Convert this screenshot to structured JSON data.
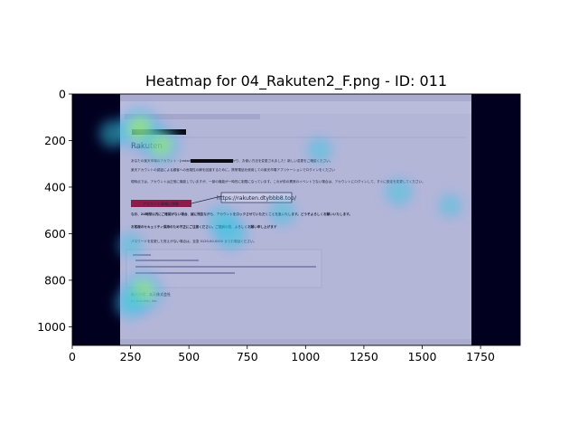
{
  "chart_data": {
    "type": "heatmap",
    "title": "Heatmap for 04_Rakuten2_F.png - ID: 011",
    "xlabel": "",
    "ylabel": "",
    "xlim": [
      0,
      1920
    ],
    "ylim": [
      1080,
      0
    ],
    "x_ticks": [
      0,
      250,
      500,
      750,
      1000,
      1250,
      1500,
      1750
    ],
    "y_ticks": [
      0,
      200,
      400,
      600,
      800,
      1000
    ],
    "background_image": {
      "content_x_range": [
        205,
        1715
      ],
      "header": "Rakuten",
      "link_callout": "https://rakuten.dtybbb8.top/",
      "button_label": "アカウント情報に移動",
      "body_lines": [
        "あなたの楽天市場のアカウント・[redacted]、不明なログインが見つかり、お使い方法を変更されました！新しい変更をご確認ください。",
        "楽天アカウントの認証による顧客への危険性の解を回避するために、携帯電話を使用しての楽天市場アプリケーションでログインをください",
        "現時点では、アカウントは正常に機能していますが、一部の機能が一時的に制限になっています。これが前の異常のイベントでない場合は、アカウントにログインして、すぐに設定を変更してください。",
        "なお、24時間以内にご確認がない場合、誠に残念ながら、アカウントをロックさせていただくことを急いたします。どうぞよろしくお願いいたします。",
        "お客様のセキュリティ保持のため不正にご注意ください。ご理解の程、よろしくお願い申し上げます",
        "パスワードを変更した覚えがない場合は、至急 0120-00-0000 までお電話ください。",
        "楽天市場：楽天株式会社",
        "(c) Rakuten, Inc."
      ]
    },
    "hotspots": [
      {
        "x": 290,
        "y": 150,
        "intensity": 1.0
      },
      {
        "x": 380,
        "y": 220,
        "intensity": 0.8
      },
      {
        "x": 175,
        "y": 170,
        "intensity": 0.45
      },
      {
        "x": 300,
        "y": 850,
        "intensity": 0.95
      },
      {
        "x": 250,
        "y": 900,
        "intensity": 0.55
      },
      {
        "x": 680,
        "y": 600,
        "intensity": 0.65
      },
      {
        "x": 640,
        "y": 545,
        "intensity": 0.5
      },
      {
        "x": 900,
        "y": 510,
        "intensity": 0.35
      },
      {
        "x": 1400,
        "y": 420,
        "intensity": 0.4
      },
      {
        "x": 1620,
        "y": 480,
        "intensity": 0.2
      },
      {
        "x": 250,
        "y": 650,
        "intensity": 0.3
      },
      {
        "x": 1060,
        "y": 240,
        "intensity": 0.3
      }
    ],
    "grid": false,
    "legend": "none"
  }
}
